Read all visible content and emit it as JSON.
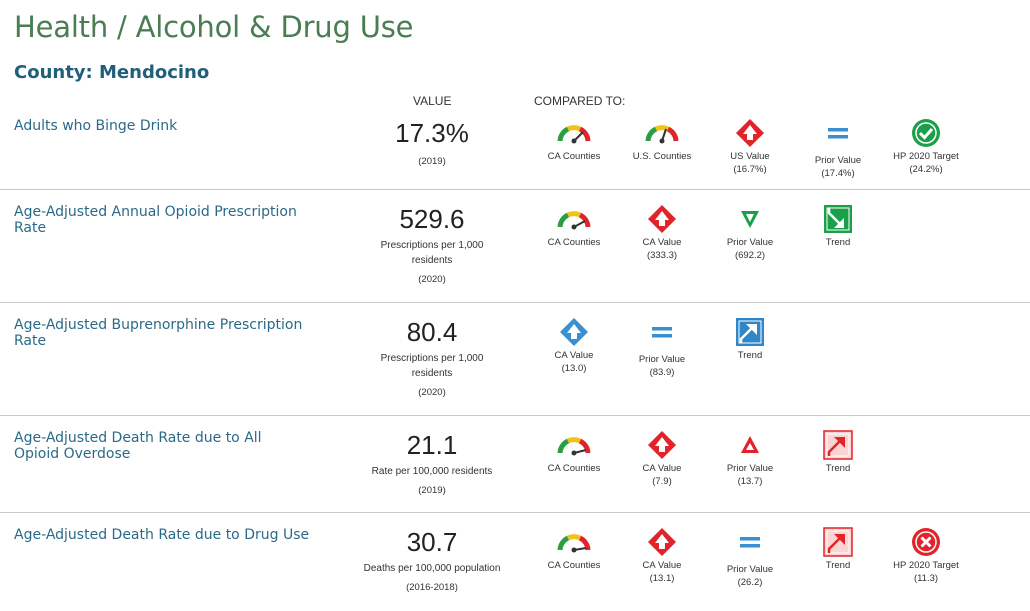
{
  "title": "Health / Alcohol & Drug Use",
  "county": "County: Mendocino",
  "headers": {
    "value": "VALUE",
    "compared": "COMPARED TO:"
  },
  "indicators": [
    {
      "name": "Adults who Binge Drink",
      "value": "17.3%",
      "unit": "",
      "period": "(2019)",
      "comparisons": [
        {
          "icon": "gauge-icon",
          "label": "CA Counties",
          "value": ""
        },
        {
          "icon": "gauge-icon",
          "label": "U.S. Counties",
          "value": ""
        },
        {
          "icon": "red-diamond-up-icon",
          "label": "US Value",
          "value": "(16.7%)"
        },
        {
          "icon": "equal-icon",
          "label": "Prior Value",
          "value": "(17.4%)"
        },
        {
          "icon": "green-check-circle-icon",
          "label": "HP 2020 Target",
          "value": "(24.2%)"
        }
      ]
    },
    {
      "name": "Age-Adjusted Annual Opioid Prescription Rate",
      "value": "529.6",
      "unit": "Prescriptions per 1,000 residents",
      "period": "(2020)",
      "comparisons": [
        {
          "icon": "gauge-icon",
          "label": "CA Counties",
          "value": ""
        },
        {
          "icon": "red-diamond-up-icon",
          "label": "CA Value",
          "value": "(333.3)"
        },
        {
          "icon": "green-triangle-down-icon",
          "label": "Prior Value",
          "value": "(692.2)"
        },
        {
          "icon": "green-trend-down-icon",
          "label": "Trend",
          "value": ""
        }
      ]
    },
    {
      "name": "Age-Adjusted Buprenorphine Prescription Rate",
      "value": "80.4",
      "unit": "Prescriptions per 1,000 residents",
      "period": "(2020)",
      "comparisons": [
        {
          "icon": "blue-diamond-up-icon",
          "label": "CA Value",
          "value": "(13.0)"
        },
        {
          "icon": "equal-icon",
          "label": "Prior Value",
          "value": "(83.9)"
        },
        {
          "icon": "blue-trend-up-icon",
          "label": "Trend",
          "value": ""
        }
      ]
    },
    {
      "name": "Age-Adjusted Death Rate due to All Opioid Overdose",
      "value": "21.1",
      "unit": "Rate per 100,000 residents",
      "period": "(2019)",
      "comparisons": [
        {
          "icon": "gauge-icon",
          "label": "CA Counties",
          "value": ""
        },
        {
          "icon": "red-diamond-up-icon",
          "label": "CA Value",
          "value": "(7.9)"
        },
        {
          "icon": "red-triangle-up-icon",
          "label": "Prior Value",
          "value": "(13.7)"
        },
        {
          "icon": "red-trend-up-icon",
          "label": "Trend",
          "value": ""
        }
      ]
    },
    {
      "name": "Age-Adjusted Death Rate due to Drug Use",
      "value": "30.7",
      "unit": "Deaths per 100,000 population",
      "period": "(2016-2018)",
      "comparisons": [
        {
          "icon": "gauge-icon",
          "label": "CA Counties",
          "value": ""
        },
        {
          "icon": "red-diamond-up-icon",
          "label": "CA Value",
          "value": "(13.1)"
        },
        {
          "icon": "equal-icon",
          "label": "Prior Value",
          "value": "(26.2)"
        },
        {
          "icon": "red-trend-up-icon",
          "label": "Trend",
          "value": ""
        },
        {
          "icon": "red-x-circle-icon",
          "label": "HP 2020 Target",
          "value": "(11.3)"
        }
      ]
    }
  ],
  "colors": {
    "title": "#4a7d52",
    "county": "#1f5f7a",
    "link": "#2a6a88",
    "red": "#e0242a",
    "green": "#1aa04a",
    "blue": "#3a8fd0"
  }
}
